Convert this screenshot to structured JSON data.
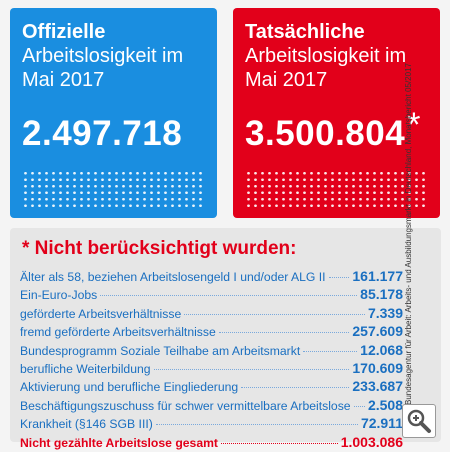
{
  "panels": [
    {
      "heading": "Offizielle",
      "subheading": "Arbeitslosigkeit im Mai 2017",
      "value": "2.497.718"
    },
    {
      "heading": "Tatsächliche",
      "subheading": "Arbeitslosigkeit im Mai 2017",
      "value": "3.500.804",
      "footnote_mark": "*"
    }
  ],
  "list": {
    "title": "* Nicht berücksichtigt wurden:",
    "rows": [
      {
        "label": "Älter als 58, beziehen Arbeitslosengeld I und/oder ALG II",
        "value": "161.177"
      },
      {
        "label": "Ein-Euro-Jobs",
        "value": "85.178"
      },
      {
        "label": "geförderte Arbeitsverhältnisse",
        "value": "7.339"
      },
      {
        "label": "fremd geförderte Arbeitsverhältnisse",
        "value": "257.609"
      },
      {
        "label": "Bundesprogramm Soziale Teilhabe am Arbeitsmarkt",
        "value": "12.068"
      },
      {
        "label": "berufliche Weiterbildung",
        "value": "170.609"
      },
      {
        "label": "Aktivierung und berufliche Eingliederung",
        "value": "233.687"
      },
      {
        "label": "Beschäftigungszuschuss für schwer vermittelbare Arbeitslose",
        "value": "2.508"
      },
      {
        "label": "Krankheit (§146 SGB III)",
        "value": "72.911"
      }
    ],
    "total": {
      "label": "Nicht gezählte Arbeitslose gesamt",
      "value": "1.003.086"
    }
  },
  "source": "Bundesagentur für Arbeit: Arbeits- und Ausbildungsmarkt in Deutschland, Monatsbericht 05/2017"
}
